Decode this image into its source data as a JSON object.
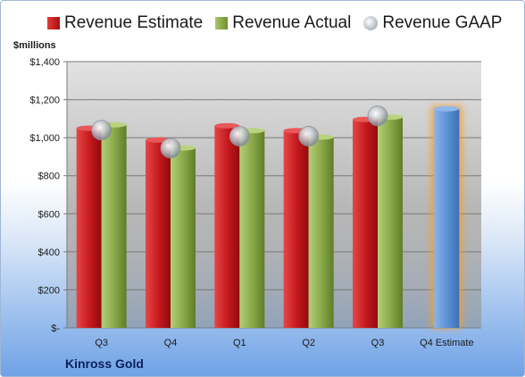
{
  "chart_data": {
    "type": "bar",
    "categories": [
      "Q3",
      "Q4",
      "Q1",
      "Q2",
      "Q3",
      "Q4 Estimate"
    ],
    "series": [
      {
        "name": "Revenue Estimate",
        "values": [
          1050,
          988,
          1063,
          1037,
          1096,
          1152
        ]
      },
      {
        "name": "Revenue Actual",
        "values": [
          1068,
          946,
          1037,
          1003,
          1108,
          null
        ]
      },
      {
        "name": "Revenue GAAP",
        "values": [
          1040,
          945,
          1008,
          1008,
          1115,
          null
        ]
      }
    ],
    "ylabel": "$millions",
    "ylim": [
      0,
      1400
    ],
    "yticks": [
      0,
      200,
      400,
      600,
      800,
      1000,
      1200,
      1400
    ],
    "ytick_labels": [
      "$-",
      "$200",
      "$400",
      "$600",
      "$800",
      "$1,000",
      "$1,200",
      "$1,400"
    ],
    "grid": true,
    "legend": "top",
    "highlighted_category": "Q4 Estimate",
    "colors": {
      "estimate": "#c0161b",
      "actual": "#85a545",
      "gaap": "#b8bec6",
      "forecast_bar": "#5a8fd4",
      "forecast_glow": "#f0a030",
      "plot_background": "#d7d7d7"
    }
  },
  "legend_labels": {
    "estimate": "Revenue Estimate",
    "actual": "Revenue Actual",
    "gaap": "Revenue GAAP"
  },
  "company": "Kinross Gold"
}
